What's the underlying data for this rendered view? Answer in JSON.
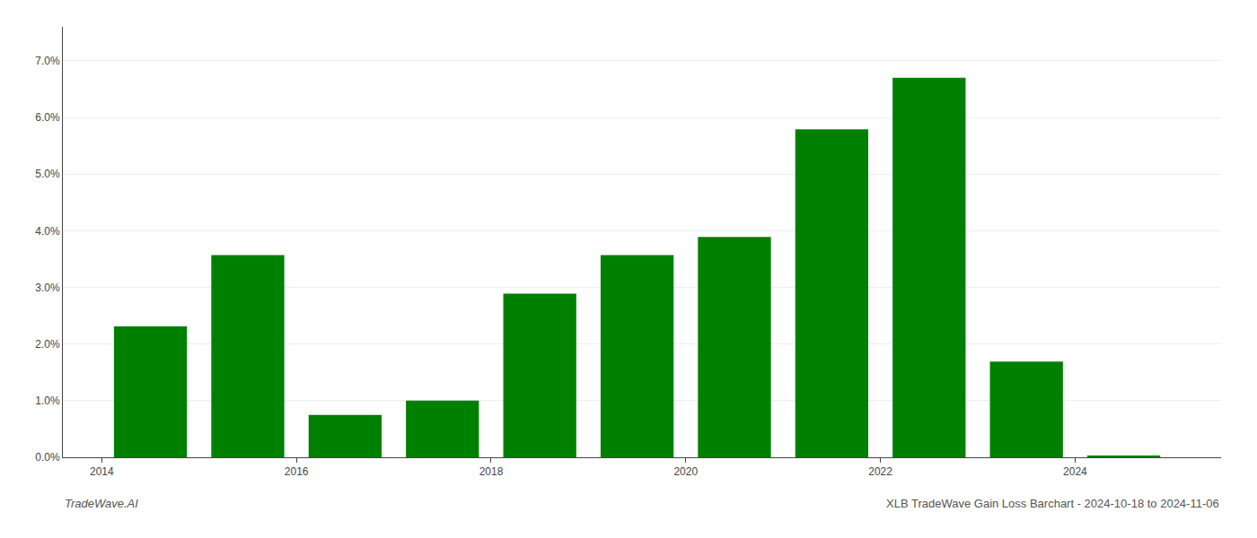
{
  "chart_data": {
    "type": "bar",
    "x": [
      2014,
      2015,
      2016,
      2017,
      2018,
      2019,
      2020,
      2021,
      2022,
      2023,
      2024
    ],
    "values": [
      0.0231,
      0.0357,
      0.0075,
      0.01,
      0.0289,
      0.0357,
      0.0389,
      0.0579,
      0.067,
      0.0169,
      0.0002
    ],
    "color": "#008000",
    "xlim": [
      2013.1,
      2025.0
    ],
    "xticks": [
      {
        "value": 2013.5,
        "label": "2014"
      },
      {
        "value": 2015.5,
        "label": "2016"
      },
      {
        "value": 2017.5,
        "label": "2018"
      },
      {
        "value": 2019.5,
        "label": "2020"
      },
      {
        "value": 2021.5,
        "label": "2022"
      },
      {
        "value": 2023.5,
        "label": "2024"
      }
    ],
    "ylim": [
      0,
      0.076
    ],
    "yticks": [
      {
        "value": 0.0,
        "label": "0.0%"
      },
      {
        "value": 0.01,
        "label": "1.0%"
      },
      {
        "value": 0.02,
        "label": "2.0%"
      },
      {
        "value": 0.03,
        "label": "3.0%"
      },
      {
        "value": 0.04,
        "label": "4.0%"
      },
      {
        "value": 0.05,
        "label": "5.0%"
      },
      {
        "value": 0.06,
        "label": "6.0%"
      },
      {
        "value": 0.07,
        "label": "7.0%"
      }
    ],
    "grid": true,
    "annotations": [
      "TradeWave.AI",
      "XLB TradeWave Gain Loss Barchart - 2024-10-18 to 2024-11-06"
    ]
  }
}
